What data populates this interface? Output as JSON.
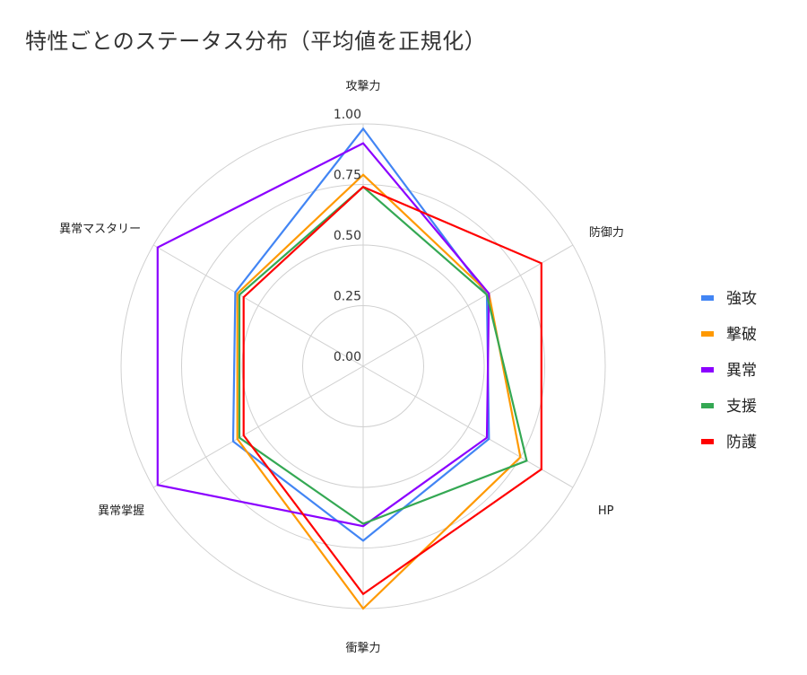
{
  "chart_data": {
    "type": "radar",
    "title": "特性ごとのステータス分布（平均値を正規化）",
    "axes": [
      "攻撃力",
      "防御力",
      "HP",
      "衝撃力",
      "異常掌握",
      "異常マスタリー"
    ],
    "ticks": [
      "0.00",
      "0.25",
      "0.50",
      "0.75",
      "1.00"
    ],
    "range": [
      0,
      1
    ],
    "grid": true,
    "legend_position": "right",
    "series": [
      {
        "name": "強攻",
        "color": "#4285F4",
        "values": [
          0.98,
          0.59,
          0.6,
          0.72,
          0.62,
          0.61
        ]
      },
      {
        "name": "撃破",
        "color": "#FF9900",
        "values": [
          0.79,
          0.6,
          0.75,
          1.0,
          0.6,
          0.6
        ]
      },
      {
        "name": "異常",
        "color": "#8B00FF",
        "values": [
          0.92,
          0.6,
          0.59,
          0.66,
          0.98,
          0.98
        ]
      },
      {
        "name": "支援",
        "color": "#34A853",
        "values": [
          0.74,
          0.59,
          0.78,
          0.65,
          0.59,
          0.59
        ]
      },
      {
        "name": "防護",
        "color": "#FF0000",
        "values": [
          0.74,
          0.85,
          0.85,
          0.94,
          0.57,
          0.57
        ]
      }
    ]
  }
}
